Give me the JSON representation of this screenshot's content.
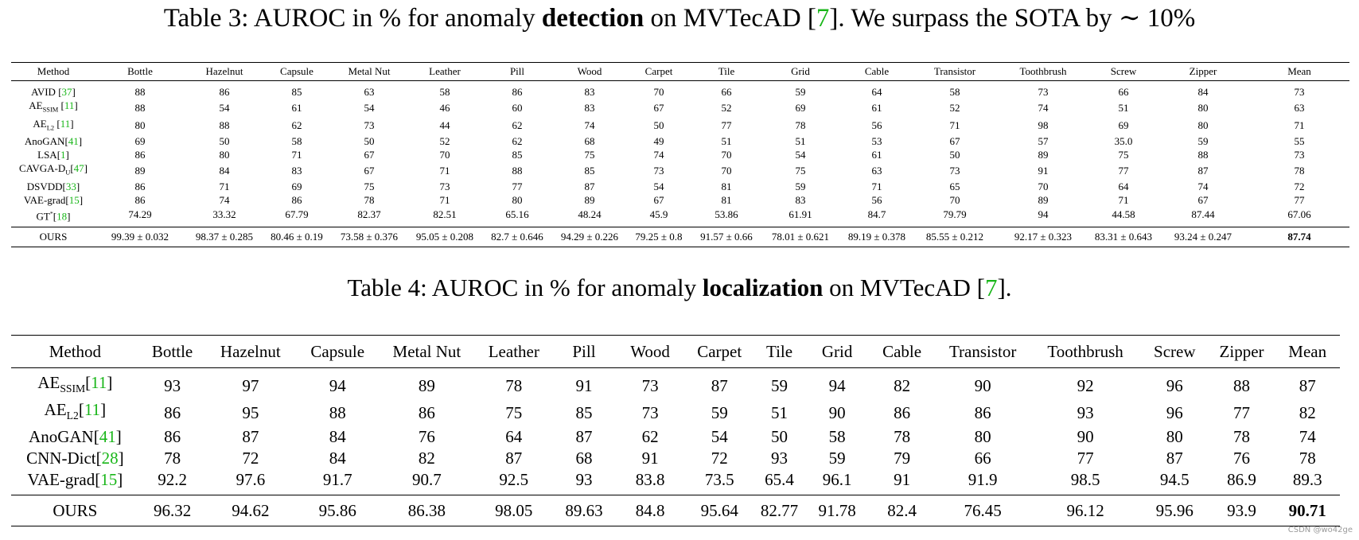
{
  "table3": {
    "caption_pre": "Table 3: AUROC in % for anomaly ",
    "caption_bold": "detection",
    "caption_mid": " on MVTecAD [",
    "caption_cite": "7",
    "caption_post": "]. We surpass the SOTA by ∼ 10%",
    "headers": [
      "Method",
      "Bottle",
      "Hazelnut",
      "Capsule",
      "Metal Nut",
      "Leather",
      "Pill",
      "Wood",
      "Carpet",
      "Tile",
      "Grid",
      "Cable",
      "Transistor",
      "Toothbrush",
      "Screw",
      "Zipper",
      "Mean"
    ],
    "rows": [
      {
        "name": "AVID",
        "sub": "",
        "sup": "",
        "cite": "37",
        "spaced": true,
        "values": [
          "88",
          "86",
          "85",
          "63",
          "58",
          "86",
          "83",
          "70",
          "66",
          "59",
          "64",
          "58",
          "73",
          "66",
          "84",
          "73"
        ]
      },
      {
        "name": "AE",
        "sub": "SSIM",
        "sup": "",
        "cite": "11",
        "spaced": true,
        "values": [
          "88",
          "54",
          "61",
          "54",
          "46",
          "60",
          "83",
          "67",
          "52",
          "69",
          "61",
          "52",
          "74",
          "51",
          "80",
          "63"
        ]
      },
      {
        "name": "AE",
        "sub": "L2",
        "sup": "",
        "cite": "11",
        "spaced": true,
        "values": [
          "80",
          "88",
          "62",
          "73",
          "44",
          "62",
          "74",
          "50",
          "77",
          "78",
          "56",
          "71",
          "98",
          "69",
          "80",
          "71"
        ]
      },
      {
        "name": "AnoGAN",
        "sub": "",
        "sup": "",
        "cite": "41",
        "spaced": false,
        "values": [
          "69",
          "50",
          "58",
          "50",
          "52",
          "62",
          "68",
          "49",
          "51",
          "51",
          "53",
          "67",
          "57",
          "35.0",
          "59",
          "55"
        ]
      },
      {
        "name": "LSA",
        "sub": "",
        "sup": "",
        "cite": "1",
        "spaced": false,
        "values": [
          "86",
          "80",
          "71",
          "67",
          "70",
          "85",
          "75",
          "74",
          "70",
          "54",
          "61",
          "50",
          "89",
          "75",
          "88",
          "73"
        ]
      },
      {
        "name": "CAVGA-D",
        "sub": "U",
        "sup": "",
        "cite": "47",
        "spaced": false,
        "values": [
          "89",
          "84",
          "83",
          "67",
          "71",
          "88",
          "85",
          "73",
          "70",
          "75",
          "63",
          "73",
          "91",
          "77",
          "87",
          "78"
        ]
      },
      {
        "name": "DSVDD",
        "sub": "",
        "sup": "",
        "cite": "33",
        "spaced": false,
        "values": [
          "86",
          "71",
          "69",
          "75",
          "73",
          "77",
          "87",
          "54",
          "81",
          "59",
          "71",
          "65",
          "70",
          "64",
          "74",
          "72"
        ]
      },
      {
        "name": "VAE-grad",
        "sub": "",
        "sup": "",
        "cite": "15",
        "spaced": false,
        "values": [
          "86",
          "74",
          "86",
          "78",
          "71",
          "80",
          "89",
          "67",
          "81",
          "83",
          "56",
          "70",
          "89",
          "71",
          "67",
          "77"
        ]
      },
      {
        "name": "GT",
        "sub": "",
        "sup": "*",
        "cite": "18",
        "spaced": false,
        "values": [
          "74.29",
          "33.32",
          "67.79",
          "82.37",
          "82.51",
          "65.16",
          "48.24",
          "45.9",
          "53.86",
          "61.91",
          "84.7",
          "79.79",
          "94",
          "44.58",
          "87.44",
          "67.06"
        ]
      }
    ],
    "ours": {
      "name": "OURS",
      "values": [
        "99.39 ± 0.032",
        "98.37 ± 0.285",
        "80.46 ± 0.19",
        "73.58 ± 0.376",
        "95.05 ± 0.208",
        "82.7 ± 0.646",
        "94.29 ± 0.226",
        "79.25 ± 0.8",
        "91.57 ± 0.66",
        "78.01 ± 0.621",
        "89.19 ± 0.378",
        "85.55 ± 0.212",
        "92.17 ± 0.323",
        "83.31 ± 0.643",
        "93.24 ± 0.247"
      ],
      "mean": "87.74"
    }
  },
  "table4": {
    "caption_pre": "Table 4: AUROC in % for anomaly ",
    "caption_bold": "localization",
    "caption_mid": " on MVTecAD [",
    "caption_cite": "7",
    "caption_post": "].",
    "headers": [
      "Method",
      "Bottle",
      "Hazelnut",
      "Capsule",
      "Metal Nut",
      "Leather",
      "Pill",
      "Wood",
      "Carpet",
      "Tile",
      "Grid",
      "Cable",
      "Transistor",
      "Toothbrush",
      "Screw",
      "Zipper",
      "Mean"
    ],
    "rows": [
      {
        "name": "AE",
        "sub": "SSIM",
        "cite": "11",
        "values": [
          "93",
          "97",
          "94",
          "89",
          "78",
          "91",
          "73",
          "87",
          "59",
          "94",
          "82",
          "90",
          "92",
          "96",
          "88",
          "87"
        ]
      },
      {
        "name": "AE",
        "sub": "L2",
        "cite": "11",
        "values": [
          "86",
          "95",
          "88",
          "86",
          "75",
          "85",
          "73",
          "59",
          "51",
          "90",
          "86",
          "86",
          "93",
          "96",
          "77",
          "82"
        ]
      },
      {
        "name": "AnoGAN",
        "sub": "",
        "cite": "41",
        "values": [
          "86",
          "87",
          "84",
          "76",
          "64",
          "87",
          "62",
          "54",
          "50",
          "58",
          "78",
          "80",
          "90",
          "80",
          "78",
          "74"
        ]
      },
      {
        "name": "CNN-Dict",
        "sub": "",
        "cite": "28",
        "values": [
          "78",
          "72",
          "84",
          "82",
          "87",
          "68",
          "91",
          "72",
          "93",
          "59",
          "79",
          "66",
          "77",
          "87",
          "76",
          "78"
        ]
      },
      {
        "name": "VAE-grad",
        "sub": "",
        "cite": "15",
        "values": [
          "92.2",
          "97.6",
          "91.7",
          "90.7",
          "92.5",
          "93",
          "83.8",
          "73.5",
          "65.4",
          "96.1",
          "91",
          "91.9",
          "98.5",
          "94.5",
          "86.9",
          "89.3"
        ]
      }
    ],
    "ours": {
      "name": "OURS",
      "values": [
        "96.32",
        "94.62",
        "95.86",
        "86.38",
        "98.05",
        "89.63",
        "84.8",
        "95.64",
        "82.77",
        "91.78",
        "82.4",
        "76.45",
        "96.12",
        "95.96",
        "93.9"
      ],
      "mean": "90.71"
    }
  },
  "watermark": "CSDN @wo42ge",
  "colors": {
    "citation": "#19b619",
    "text": "#000000"
  }
}
